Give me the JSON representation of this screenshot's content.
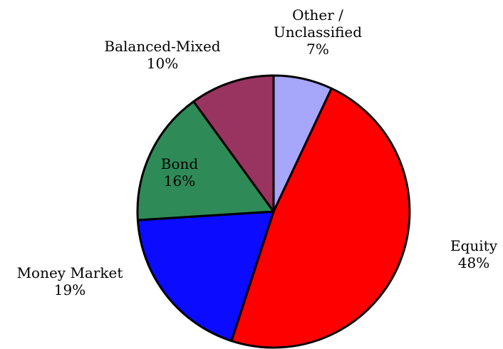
{
  "chart_data": {
    "type": "pie",
    "title": "",
    "start_angle_deg": 0,
    "direction": "clockwise",
    "slices": [
      {
        "name": "Other / Unclassified",
        "label_lines": [
          "Other /",
          "Unclassified"
        ],
        "value": 7,
        "value_label": "7%",
        "color": "#a6a6fb"
      },
      {
        "name": "Equity",
        "label_lines": [
          "Equity"
        ],
        "value": 48,
        "value_label": "48%",
        "color": "#ff0000"
      },
      {
        "name": "Money Market",
        "label_lines": [
          "Money Market"
        ],
        "value": 19,
        "value_label": "19%",
        "color": "#0b0bff"
      },
      {
        "name": "Bond",
        "label_lines": [
          "Bond"
        ],
        "value": 16,
        "value_label": "16%",
        "color": "#2e8b57"
      },
      {
        "name": "Balanced-Mixed",
        "label_lines": [
          "Balanced-Mixed"
        ],
        "value": 10,
        "value_label": "10%",
        "color": "#99335f"
      }
    ]
  }
}
